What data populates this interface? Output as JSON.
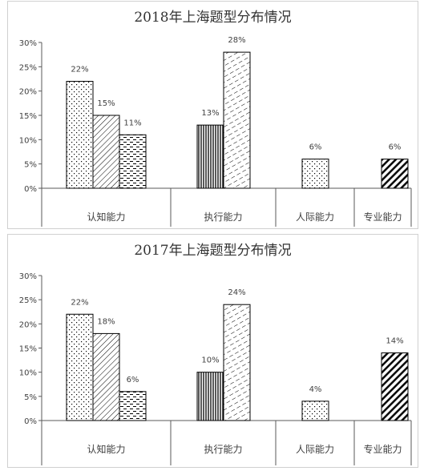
{
  "colors": {
    "bar_edge": "#000000",
    "axis": "#595959",
    "text": "#404040",
    "title": "#333333"
  },
  "patterns": [
    "dots",
    "diagonal",
    "dashes",
    "vertical",
    "dashed-diagonal",
    "heavy-diagonal"
  ],
  "chart_data": [
    {
      "type": "bar",
      "title": "2018年上海题型分布情况",
      "ylim": [
        0,
        30
      ],
      "yticks": [
        "0%",
        "5%",
        "10%",
        "15%",
        "20%",
        "25%",
        "30%"
      ],
      "grid": false,
      "legend": "none",
      "categories": [
        "认知能力",
        "执行能力",
        "人际能力",
        "专业能力"
      ],
      "bars": [
        {
          "category": "认知能力",
          "value": 22,
          "label": "22%",
          "pattern": "dots"
        },
        {
          "category": "认知能力",
          "value": 15,
          "label": "15%",
          "pattern": "diagonal"
        },
        {
          "category": "认知能力",
          "value": 11,
          "label": "11%",
          "pattern": "dashes"
        },
        {
          "category": "执行能力",
          "value": 13,
          "label": "13%",
          "pattern": "vertical"
        },
        {
          "category": "执行能力",
          "value": 28,
          "label": "28%",
          "pattern": "dashed-diagonal"
        },
        {
          "category": "人际能力",
          "value": 6,
          "label": "6%",
          "pattern": "dots"
        },
        {
          "category": "专业能力",
          "value": 6,
          "label": "6%",
          "pattern": "heavy-diagonal"
        }
      ]
    },
    {
      "type": "bar",
      "title": "2017年上海题型分布情况",
      "ylim": [
        0,
        30
      ],
      "yticks": [
        "0%",
        "5%",
        "10%",
        "15%",
        "20%",
        "25%",
        "30%"
      ],
      "grid": false,
      "legend": "none",
      "categories": [
        "认知能力",
        "执行能力",
        "人际能力",
        "专业能力"
      ],
      "bars": [
        {
          "category": "认知能力",
          "value": 22,
          "label": "22%",
          "pattern": "dots"
        },
        {
          "category": "认知能力",
          "value": 18,
          "label": "18%",
          "pattern": "diagonal"
        },
        {
          "category": "认知能力",
          "value": 6,
          "label": "6%",
          "pattern": "dashes"
        },
        {
          "category": "执行能力",
          "value": 10,
          "label": "10%",
          "pattern": "vertical"
        },
        {
          "category": "执行能力",
          "value": 24,
          "label": "24%",
          "pattern": "dashed-diagonal"
        },
        {
          "category": "人际能力",
          "value": 4,
          "label": "4%",
          "pattern": "dots"
        },
        {
          "category": "专业能力",
          "value": 14,
          "label": "14%",
          "pattern": "heavy-diagonal"
        }
      ]
    }
  ]
}
